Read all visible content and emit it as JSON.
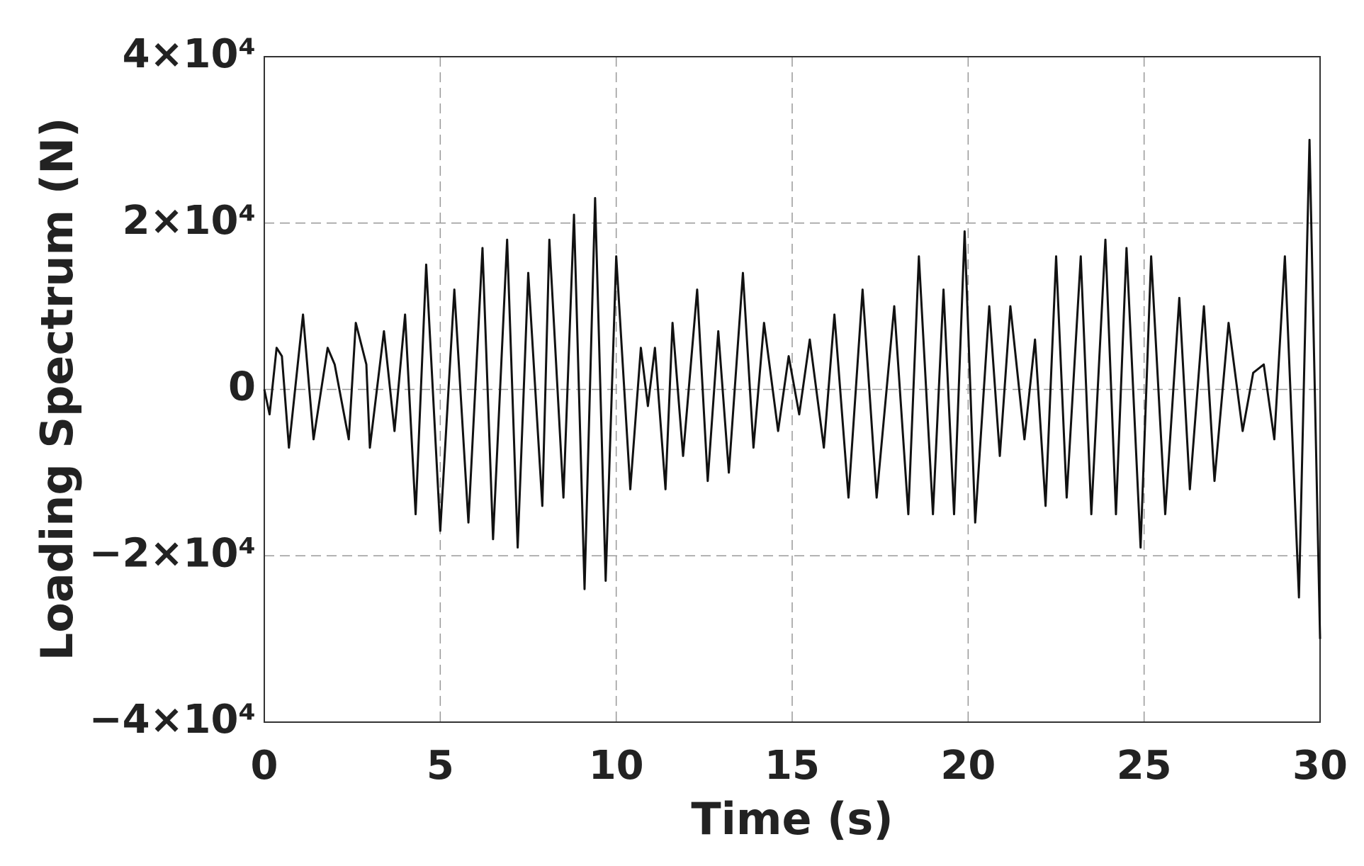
{
  "chart_data": {
    "type": "line",
    "x_label": "Time (s)",
    "y_label": "Loading Spectrum (N)",
    "xlim": [
      0,
      30
    ],
    "ylim": [
      -40000,
      40000
    ],
    "xticks": [
      0,
      5,
      10,
      15,
      20,
      25,
      30
    ],
    "yticks": [
      {
        "value": -40000,
        "label": "−4×10⁴"
      },
      {
        "value": -20000,
        "label": "−2×10⁴"
      },
      0,
      {
        "value": 20000,
        "label": "2×10⁴"
      },
      {
        "value": 40000,
        "label": "4×10⁴"
      }
    ],
    "grid": true,
    "series": [
      {
        "color": "#111111",
        "x": [
          0,
          0.15,
          0.35,
          0.5,
          0.7,
          1.1,
          1.4,
          1.8,
          2.0,
          2.4,
          2.6,
          2.9,
          3.0,
          3.4,
          3.7,
          4.0,
          4.3,
          4.6,
          5.0,
          5.4,
          5.8,
          6.2,
          6.5,
          6.9,
          7.2,
          7.5,
          7.9,
          8.1,
          8.5,
          8.8,
          9.1,
          9.4,
          9.7,
          10.0,
          10.4,
          10.7,
          10.9,
          11.1,
          11.4,
          11.6,
          11.9,
          12.3,
          12.6,
          12.9,
          13.2,
          13.6,
          13.9,
          14.2,
          14.6,
          14.9,
          15.2,
          15.5,
          15.9,
          16.2,
          16.6,
          17.0,
          17.4,
          17.9,
          18.3,
          18.6,
          19.0,
          19.3,
          19.6,
          19.9,
          20.2,
          20.6,
          20.9,
          21.2,
          21.6,
          21.9,
          22.2,
          22.5,
          22.8,
          23.2,
          23.5,
          23.9,
          24.2,
          24.5,
          24.9,
          25.2,
          25.6,
          26.0,
          26.3,
          26.7,
          27.0,
          27.4,
          27.8,
          28.1,
          28.4,
          28.7,
          29.0,
          29.4,
          29.7,
          30.0
        ],
        "values": [
          0,
          -3000,
          5000,
          4000,
          -7000,
          9000,
          -6000,
          5000,
          3000,
          -6000,
          8000,
          3000,
          -7000,
          7000,
          -5000,
          9000,
          -15000,
          15000,
          -17000,
          12000,
          -16000,
          17000,
          -18000,
          18000,
          -19000,
          14000,
          -14000,
          18000,
          -13000,
          21000,
          -24000,
          23000,
          -23000,
          16000,
          -12000,
          5000,
          -2000,
          5000,
          -12000,
          8000,
          -8000,
          12000,
          -11000,
          7000,
          -10000,
          14000,
          -7000,
          8000,
          -5000,
          4000,
          -3000,
          6000,
          -7000,
          9000,
          -13000,
          12000,
          -13000,
          10000,
          -15000,
          16000,
          -15000,
          12000,
          -15000,
          19000,
          -16000,
          10000,
          -8000,
          10000,
          -6000,
          6000,
          -14000,
          16000,
          -13000,
          16000,
          -15000,
          18000,
          -15000,
          17000,
          -19000,
          16000,
          -15000,
          11000,
          -12000,
          10000,
          -11000,
          8000,
          -5000,
          2000,
          3000,
          -6000,
          16000,
          -25000,
          30000,
          -30000
        ]
      }
    ]
  }
}
